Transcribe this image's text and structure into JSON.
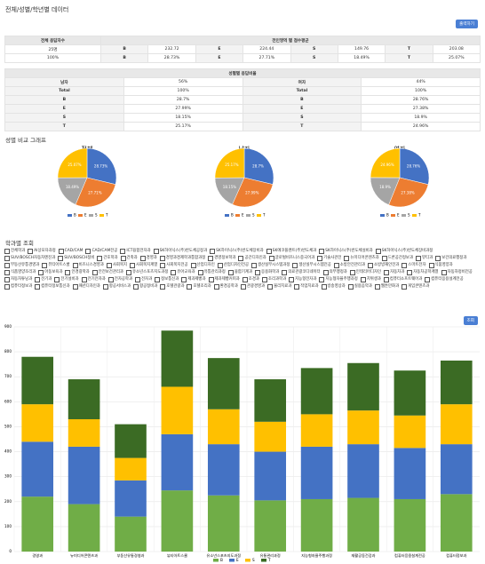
{
  "header": {
    "title": "전체/성별/학년별 데이터",
    "print_button": "출력하기"
  },
  "summary": {
    "headers": [
      "전체 응답자수",
      "전인영역 별 점수평균"
    ],
    "rows": [
      [
        "25명",
        "B",
        "232.72",
        "E",
        "224.44",
        "S",
        "149.76",
        "T",
        "203.08"
      ],
      [
        "100%",
        "B",
        "28.73%",
        "E",
        "27.71%",
        "S",
        "18.49%",
        "T",
        "25.07%"
      ]
    ]
  },
  "gender_table": {
    "header": "성별별 응답비율",
    "rows": [
      [
        "남자",
        "56%",
        "여자",
        "44%"
      ],
      [
        "Total",
        "100%",
        "Total",
        "100%"
      ],
      [
        "B",
        "28.7%",
        "B",
        "28.76%"
      ],
      [
        "E",
        "27.99%",
        "E",
        "27.38%"
      ],
      [
        "S",
        "18.15%",
        "S",
        "18.9%"
      ],
      [
        "T",
        "25.17%",
        "T",
        "24.96%"
      ]
    ]
  },
  "pie_section": {
    "title": "성별 비교 그래프"
  },
  "departments": {
    "title": "학과별 조회",
    "search_button": "조회",
    "items": [
      "전체학과",
      "AI상모자과정",
      "CAD/CAM",
      "CAD/CAM전공",
      "ICT융합전자과",
      "SK하이닉스(주)반도체공정과",
      "SK하이닉스(주)반도체장비과",
      "SK에코플랜트(주)반도체과",
      "SK하이닉스(주)반도체설비과",
      "SK하이닉스(주)반도체장비과정",
      "SUV/BOSCH자동차엔진과",
      "SUV/BOSCH정비",
      "간호학과",
      "건축과",
      "경영과",
      "경영과경제학과통합과정",
      "경영정보학과",
      "공간디자인과",
      "글로벌비즈니스중국어과",
      "기술사관전",
      "뉴미디어콘텐츠과",
      "드론공간정보과",
      "뷰티과",
      "보건의료행정과",
      "부동산유통경영과",
      "뷰티아트스쿨",
      "비즈니스경영과",
      "사회복지",
      "사회복지계열",
      "사회복지전공",
      "산업디자인",
      "산업디자인전공",
      "생산실무시스템과정",
      "생산실무시스템전공",
      "소방안전관리과",
      "소방방재안전과",
      "스마트전자",
      "식품영양과",
      "식품영양조리과",
      "아동보육과",
      "안경광학과",
      "안전보건관리과",
      "유소년스포츠지도과정",
      "유아교육과",
      "유통관리과정",
      "융합기계과",
      "응용화학과",
      "의료관광코디네이터",
      "의무행정과",
      "인테리어디자인",
      "자동차과",
      "자동차공학계열",
      "자동차정비전공",
      "자동차튜닝과",
      "전기과",
      "전기설비과",
      "전기전자과",
      "전자공학과",
      "전자과",
      "정보통신과",
      "제과제빵과",
      "제과제빵커피과",
      "조경과",
      "조리과학과",
      "지능형전자과",
      "지능형자율주행과정",
      "치위생과",
      "컴퓨터소프트웨어과",
      "컴퓨터응용설계전공",
      "컴퓨터정보과",
      "컴퓨터정보통신과",
      "패션디자인과",
      "항공서비스과",
      "항공정비과",
      "호텔관광과",
      "호텔조리과",
      "환경공학과",
      "관광경영과",
      "물리치료과",
      "작업치료과",
      "방송영상과",
      "실용음악과",
      "웹툰만화과",
      "게임콘텐츠과"
    ]
  },
  "chart_data": [
    {
      "type": "pie",
      "title": "전체",
      "categories": [
        "B",
        "E",
        "S",
        "T"
      ],
      "values": [
        28.73,
        27.71,
        18.49,
        25.07
      ],
      "value_labels": [
        "28.73%",
        "27.71%",
        "18.49%",
        "25.07%"
      ],
      "colors": [
        "#4472c4",
        "#ed7d31",
        "#a5a5a5",
        "#ffc000"
      ]
    },
    {
      "type": "pie",
      "title": "남자",
      "categories": [
        "B",
        "E",
        "S",
        "T"
      ],
      "values": [
        28.7,
        27.99,
        18.15,
        25.17
      ],
      "value_labels": [
        "28.7%",
        "27.99%",
        "18.15%",
        "25.17%"
      ],
      "colors": [
        "#4472c4",
        "#ed7d31",
        "#a5a5a5",
        "#ffc000"
      ]
    },
    {
      "type": "pie",
      "title": "여자",
      "categories": [
        "B",
        "E",
        "S",
        "T"
      ],
      "values": [
        28.76,
        27.38,
        18.9,
        24.96
      ],
      "value_labels": [
        "28.76%",
        "27.38%",
        "18.9%",
        "24.96%"
      ],
      "colors": [
        "#4472c4",
        "#ed7d31",
        "#a5a5a5",
        "#ffc000"
      ]
    },
    {
      "type": "bar",
      "stacked": true,
      "grid": true,
      "categories": [
        "경영과",
        "뉴미디어콘텐츠과",
        "부동산유통경영과",
        "뷰티아트스쿨",
        "유소년스포츠지도과정",
        "유통관리과정",
        "지능형자율주행과정",
        "재활공동건강과",
        "컴퓨터응용설계전공",
        "컴퓨터정보과"
      ],
      "ylim": [
        0,
        900
      ],
      "yticks": [
        0,
        100,
        200,
        300,
        400,
        500,
        600,
        700,
        800,
        900
      ],
      "series": [
        {
          "name": "B",
          "color": "#70ad47",
          "values": [
            220,
            190,
            140,
            245,
            225,
            205,
            210,
            215,
            210,
            230
          ]
        },
        {
          "name": "E",
          "color": "#4472c4",
          "values": [
            220,
            230,
            145,
            225,
            205,
            195,
            210,
            215,
            205,
            200
          ]
        },
        {
          "name": "S",
          "color": "#ffc000",
          "values": [
            150,
            110,
            90,
            190,
            140,
            120,
            130,
            135,
            130,
            160
          ]
        },
        {
          "name": "T",
          "color": "#3b6b24",
          "values": [
            190,
            160,
            135,
            225,
            205,
            170,
            185,
            190,
            180,
            175
          ]
        }
      ]
    }
  ]
}
